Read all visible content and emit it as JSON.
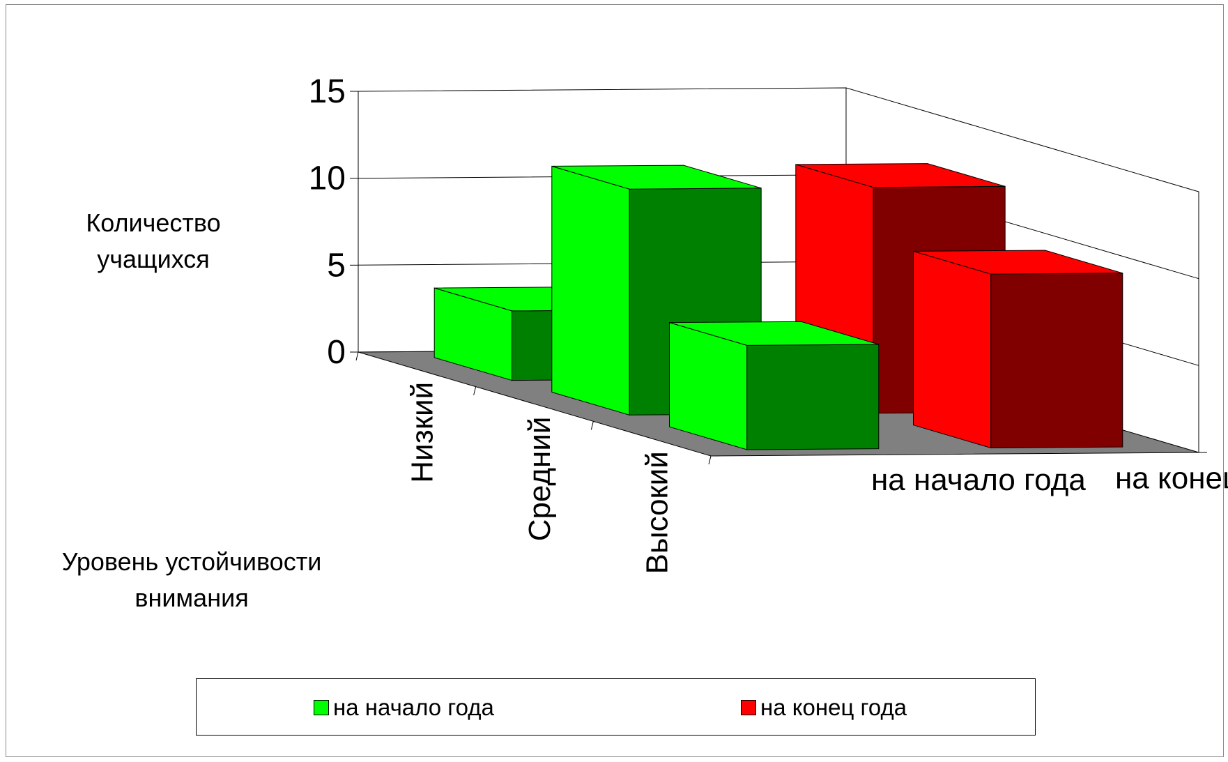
{
  "chart_data": {
    "type": "bar",
    "three_d": true,
    "categories": [
      "Низкий",
      "Средний",
      "Высокий"
    ],
    "series": [
      {
        "name": "на начало года",
        "values": [
          4,
          13,
          6
        ],
        "color": "#00ff00"
      },
      {
        "name": "на конец года",
        "values": [
          0,
          13,
          10
        ],
        "color": "#ff0000"
      }
    ],
    "ylabel": "Количество учащихся",
    "xlabel": "Уровень устойчивости внимания",
    "ylim": [
      0,
      15
    ],
    "yticks": [
      "0",
      "5",
      "10",
      "15"
    ],
    "grid": true,
    "legend_position": "bottom"
  }
}
